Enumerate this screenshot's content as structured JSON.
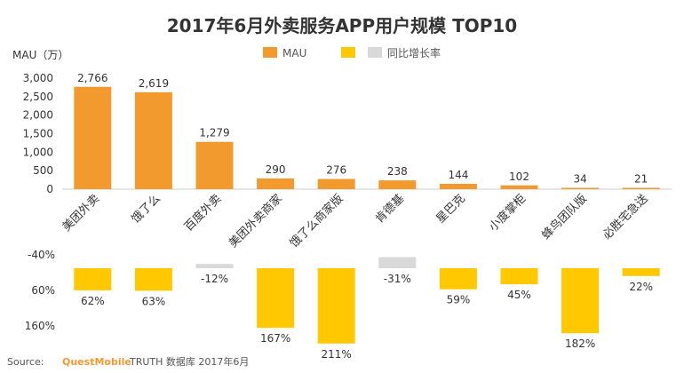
{
  "chart_data": {
    "type": "bar",
    "title": "2017年6月外卖服务APP用户规模 TOP10",
    "ylabel": "MAU（万）",
    "ylim": [
      0,
      3000
    ],
    "yticks": [
      "3,000",
      "2,500",
      "2,000",
      "1,500",
      "1,000",
      "500",
      "0"
    ],
    "categories": [
      "美团外卖",
      "饿了么",
      "百度外卖",
      "美团外卖商家",
      "饿了么商家版",
      "肯德基",
      "星巴克",
      "小度掌柜",
      "蜂鸟团队版",
      "必胜宅急送"
    ],
    "series": [
      {
        "name": "MAU",
        "color": "#F29A2E",
        "values": [
          2766,
          2619,
          1279,
          290,
          276,
          238,
          144,
          102,
          34,
          21
        ],
        "labels": [
          "2,766",
          "2,619",
          "1,279",
          "290",
          "276",
          "238",
          "144",
          "102",
          "34",
          "21"
        ]
      },
      {
        "name": "同比增长率",
        "color_positive": "#FFC800",
        "color_negative": "#D9D9D9",
        "values": [
          62,
          63,
          -12,
          167,
          211,
          -31,
          59,
          45,
          182,
          22
        ],
        "labels": [
          "62%",
          "63%",
          "-12%",
          "167%",
          "211%",
          "-31%",
          "59%",
          "45%",
          "182%",
          "22%"
        ]
      }
    ],
    "growth_axis": {
      "ticks": [
        "-40%",
        "60%",
        "160%"
      ],
      "tick_values": [
        -40,
        60,
        160
      ]
    },
    "legend": {
      "position": "top",
      "items": [
        "MAU",
        "",
        "同比增长率"
      ]
    }
  },
  "source": {
    "prefix": "Source:",
    "brand": "QuestMobile",
    "suffix": "TRUTH 数据库 2017年6月"
  }
}
